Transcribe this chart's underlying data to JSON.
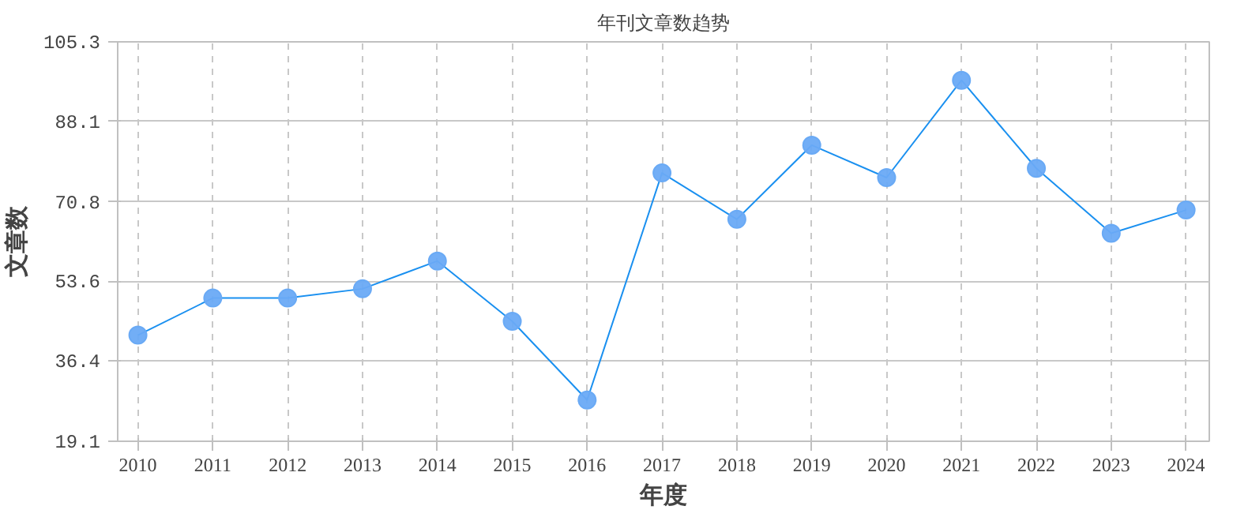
{
  "chart_data": {
    "type": "line",
    "title": "年刊文章数趋势",
    "xlabel": "年度",
    "ylabel": "文章数",
    "categories": [
      "2010",
      "2011",
      "2012",
      "2013",
      "2014",
      "2015",
      "2016",
      "2017",
      "2018",
      "2019",
      "2020",
      "2021",
      "2022",
      "2023",
      "2024"
    ],
    "series": [
      {
        "color": "#1a90f0",
        "values": [
          42,
          50,
          50,
          52,
          58,
          45,
          28,
          77,
          67,
          83,
          76,
          97,
          78,
          64,
          69
        ]
      }
    ],
    "ylim": [
      19.1,
      105.3
    ],
    "yticks": [
      {
        "value": 19.1,
        "label": "19.1"
      },
      {
        "value": 36.4,
        "label": "36.4"
      },
      {
        "value": 53.6,
        "label": "53.6"
      },
      {
        "value": 70.8,
        "label": "70.8"
      },
      {
        "value": 88.1,
        "label": "88.1"
      },
      {
        "value": 105.3,
        "label": "105.3"
      }
    ],
    "grid": true,
    "marker": "circle",
    "line_style": "solid"
  }
}
